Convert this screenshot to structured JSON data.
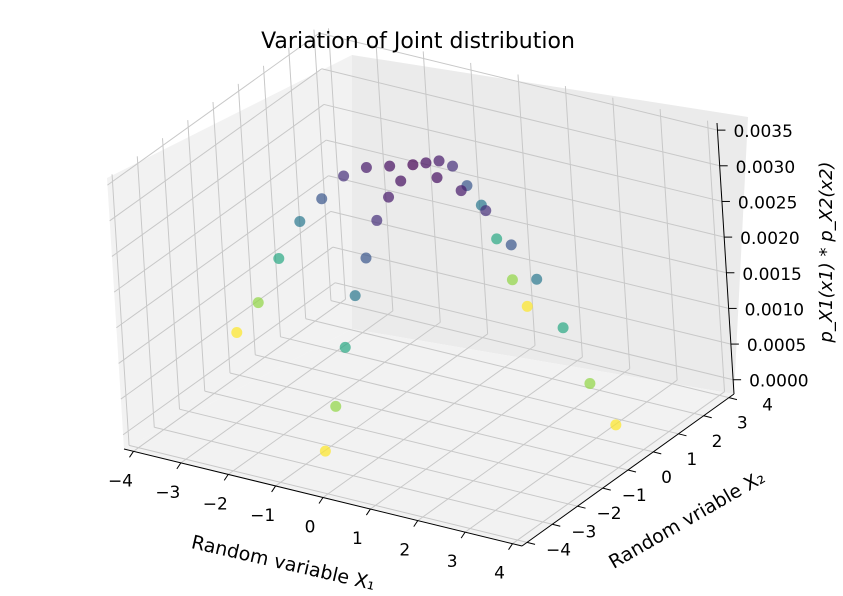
{
  "chart_data": {
    "type": "scatter",
    "projection": "3d",
    "title": "Variation of Joint distribution",
    "xlabel": "Random variable X₁",
    "ylabel": "Random vriable X₂",
    "zlabel": "p_X1(x1) * p_X2(x2)",
    "xlim": [
      -4.2,
      4.2
    ],
    "ylim": [
      -4.2,
      4.2
    ],
    "zlim": [
      -0.0002,
      0.0036
    ],
    "xticks": [
      "−4",
      "−3",
      "−2",
      "−1",
      "0",
      "1",
      "2",
      "3",
      "4"
    ],
    "yticks": [
      "−4",
      "−3",
      "−2",
      "−1",
      "0",
      "1",
      "2",
      "3",
      "4"
    ],
    "zticks": [
      "0.0000",
      "0.0005",
      "0.0010",
      "0.0015",
      "0.0020",
      "0.0025",
      "0.0030",
      "0.0035"
    ],
    "colormap": "viridis",
    "grid": true,
    "point_alpha": 0.7,
    "series": [
      {
        "description": "(x1, x2) pairs along the x1 = 0 ridge and x2 = 0 ridge; z = p_X1(x1) * p_X2(x2), color by z",
        "x": [
          -4.0,
          -3.5,
          -3.0,
          -2.5,
          -2.0,
          -1.5,
          -1.0,
          -0.5,
          0.0,
          0.5,
          1.0,
          1.5,
          2.0,
          2.5,
          3.0,
          3.5,
          4.0,
          0.0,
          0.0,
          0.0,
          0.0,
          0.0,
          0.0,
          0.0,
          0.0,
          0.0,
          0.0,
          0.0,
          0.0,
          0.0,
          0.0,
          0.0,
          0.0
        ],
        "y": [
          0.0,
          0.0,
          0.0,
          0.0,
          0.0,
          0.0,
          0.0,
          0.0,
          0.0,
          0.0,
          0.0,
          0.0,
          0.0,
          0.0,
          0.0,
          0.0,
          0.0,
          -4.0,
          -3.5,
          -3.0,
          -2.5,
          -2.0,
          -1.5,
          -1.0,
          -0.5,
          0.5,
          1.0,
          1.5,
          2.0,
          2.5,
          3.0,
          3.5,
          4.0
        ],
        "z": [
          0.0004,
          0.0009,
          0.0016,
          0.0022,
          0.0026,
          0.003,
          0.0032,
          0.0033,
          0.0034,
          0.0033,
          0.0032,
          0.003,
          0.0026,
          0.0022,
          0.0016,
          0.0009,
          0.0004,
          0.0004,
          0.0009,
          0.0016,
          0.0022,
          0.0026,
          0.003,
          0.0032,
          0.0033,
          0.0033,
          0.0032,
          0.003,
          0.0026,
          0.0022,
          0.0016,
          0.0009,
          0.0004
        ]
      }
    ]
  }
}
